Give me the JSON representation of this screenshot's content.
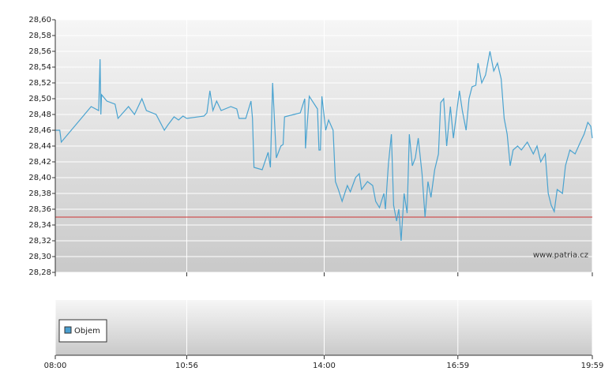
{
  "chart_data": {
    "type": "line",
    "x": [
      0,
      6,
      8,
      48,
      58,
      60,
      61,
      62,
      69,
      80,
      84,
      98,
      106,
      116,
      122,
      135,
      146,
      151,
      159,
      165,
      171,
      176,
      199,
      203,
      207,
      211,
      216,
      222,
      235,
      243,
      246,
      255,
      262,
      264,
      266,
      277,
      285,
      288,
      291,
      296,
      302,
      305,
      307,
      328,
      334,
      335,
      340,
      351,
      353,
      355,
      357,
      362,
      366,
      372,
      375,
      379,
      384,
      391,
      395,
      402,
      407,
      410,
      418,
      425,
      429,
      434,
      440,
      442,
      446,
      450,
      453,
      457,
      460,
      463,
      467,
      471,
      474,
      478,
      482,
      486,
      491,
      495,
      499,
      503,
      508,
      513,
      516,
      520,
      524,
      529,
      533,
      537,
      541,
      545,
      550,
      554,
      558,
      563,
      566,
      571,
      576,
      582,
      587,
      592,
      597,
      601,
      605,
      609,
      613,
      619,
      624,
      632,
      640,
      645,
      650,
      656,
      660,
      664,
      668,
      672,
      679,
      683,
      689,
      696,
      703,
      708,
      713,
      717,
      719
    ],
    "values": [
      28.46,
      28.46,
      28.445,
      28.49,
      28.485,
      28.55,
      28.48,
      28.505,
      28.497,
      28.493,
      28.475,
      28.49,
      28.48,
      28.5,
      28.485,
      28.48,
      28.46,
      28.467,
      28.477,
      28.473,
      28.478,
      28.475,
      28.478,
      28.482,
      28.51,
      28.485,
      28.497,
      28.485,
      28.49,
      28.487,
      28.475,
      28.475,
      28.497,
      28.475,
      28.413,
      28.41,
      28.432,
      28.413,
      28.52,
      28.425,
      28.44,
      28.442,
      28.477,
      28.482,
      28.5,
      28.437,
      28.503,
      28.487,
      28.435,
      28.435,
      28.503,
      28.46,
      28.473,
      28.46,
      28.395,
      28.385,
      28.37,
      28.39,
      28.382,
      28.4,
      28.405,
      28.385,
      28.395,
      28.39,
      28.37,
      28.362,
      28.38,
      28.36,
      28.417,
      28.455,
      28.365,
      28.345,
      28.36,
      28.32,
      28.38,
      28.355,
      28.455,
      28.415,
      28.425,
      28.45,
      28.405,
      28.35,
      28.395,
      28.375,
      28.41,
      28.43,
      28.495,
      28.5,
      28.44,
      28.49,
      28.45,
      28.48,
      28.51,
      28.485,
      28.46,
      28.5,
      28.515,
      28.517,
      28.545,
      28.52,
      28.53,
      28.56,
      28.535,
      28.545,
      28.525,
      28.475,
      28.455,
      28.415,
      28.435,
      28.44,
      28.435,
      28.445,
      28.43,
      28.44,
      28.42,
      28.43,
      28.38,
      28.365,
      28.357,
      28.385,
      28.38,
      28.415,
      28.435,
      28.43,
      28.445,
      28.455,
      28.47,
      28.465,
      28.45
    ],
    "color": "#4aa3d0",
    "reference_line": {
      "value": 28.35,
      "color": "#cc3333"
    },
    "xlim": [
      0,
      719
    ],
    "xticks": [
      {
        "value": 0,
        "label": "08:00"
      },
      {
        "value": 176,
        "label": "10:56"
      },
      {
        "value": 360,
        "label": "14:00"
      },
      {
        "value": 539,
        "label": "16:59"
      },
      {
        "value": 719,
        "label": "19:59"
      }
    ],
    "ylim": [
      28.28,
      28.6
    ],
    "yticks": [
      {
        "value": 28.28,
        "label": "28,28"
      },
      {
        "value": 28.3,
        "label": "28,30"
      },
      {
        "value": 28.32,
        "label": "28,32"
      },
      {
        "value": 28.34,
        "label": "28,34"
      },
      {
        "value": 28.36,
        "label": "28,36"
      },
      {
        "value": 28.38,
        "label": "28,38"
      },
      {
        "value": 28.4,
        "label": "28,40"
      },
      {
        "value": 28.42,
        "label": "28,42"
      },
      {
        "value": 28.44,
        "label": "28,44"
      },
      {
        "value": 28.46,
        "label": "28,46"
      },
      {
        "value": 28.48,
        "label": "28,48"
      },
      {
        "value": 28.5,
        "label": "28,50"
      },
      {
        "value": 28.52,
        "label": "28,52"
      },
      {
        "value": 28.54,
        "label": "28,54"
      },
      {
        "value": 28.56,
        "label": "28,56"
      },
      {
        "value": 28.58,
        "label": "28,58"
      },
      {
        "value": 28.6,
        "label": "28,60"
      }
    ],
    "grid": true,
    "watermark": "www.patria.cz",
    "volume": {
      "name": "Objem",
      "color": "#4a9fd0"
    }
  }
}
